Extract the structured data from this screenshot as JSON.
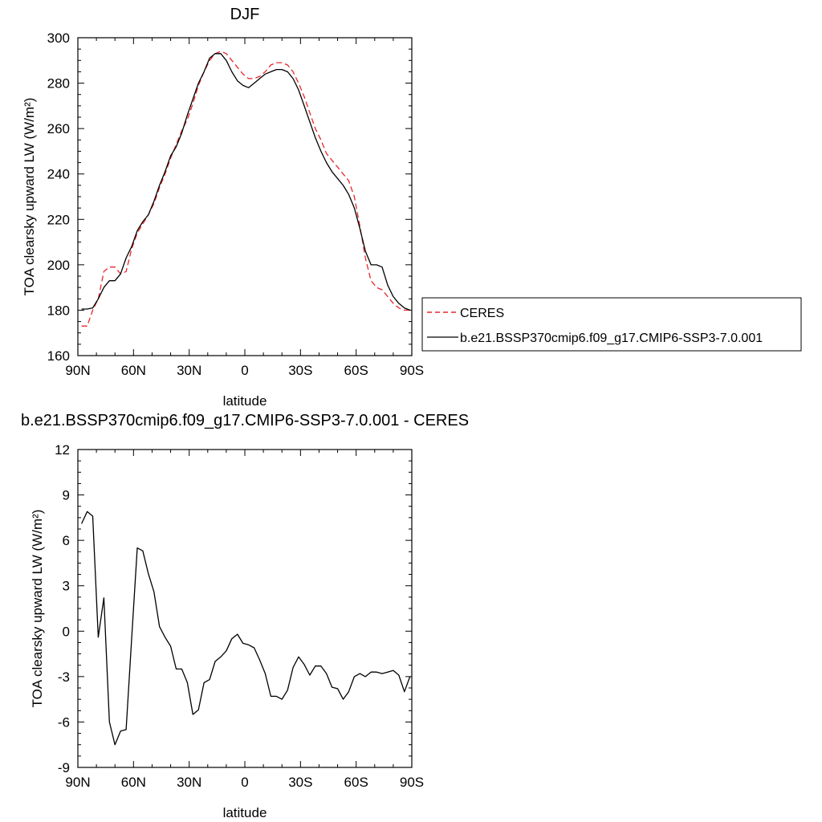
{
  "chart_data": [
    {
      "type": "line",
      "title": "DJF",
      "xlabel": "latitude",
      "ylabel": "TOA clearsky upward LW (W/m²)",
      "xlim": [
        -90,
        90
      ],
      "ylim": [
        160,
        300
      ],
      "x_ticks": [
        -90,
        -60,
        -30,
        0,
        30,
        60,
        90
      ],
      "x_tick_labels": [
        "90N",
        "60N",
        "30N",
        "0",
        "30S",
        "60S",
        "90S"
      ],
      "y_ticks": [
        160,
        180,
        200,
        220,
        240,
        260,
        280,
        300
      ],
      "y_tick_labels": [
        "160",
        "180",
        "200",
        "220",
        "240",
        "260",
        "280",
        "300"
      ],
      "legend": {
        "position": "right"
      },
      "series": [
        {
          "name": "CERES",
          "color": "#e8262a",
          "dash": true,
          "x": [
            -88,
            -85,
            -82,
            -79,
            -76,
            -73,
            -70,
            -67,
            -64,
            -61,
            -58,
            -55,
            -52,
            -49,
            -46,
            -43,
            -40,
            -37,
            -34,
            -31,
            -28,
            -25,
            -22,
            -19,
            -16,
            -13,
            -10,
            -7,
            -4,
            -1,
            2,
            5,
            8,
            11,
            14,
            17,
            20,
            23,
            26,
            29,
            32,
            35,
            38,
            41,
            44,
            47,
            50,
            53,
            56,
            59,
            62,
            65,
            68,
            71,
            74,
            77,
            80,
            83,
            86,
            89
          ],
          "y": [
            173,
            173,
            180,
            185,
            197,
            199,
            199,
            196,
            197,
            207,
            214,
            218,
            222,
            227,
            234,
            240,
            247,
            253,
            259,
            264,
            271,
            279,
            285,
            290,
            293,
            294,
            293,
            290,
            287,
            284,
            282,
            282,
            283,
            285,
            288,
            289,
            289,
            288,
            285,
            280,
            274,
            267,
            260,
            255,
            249,
            246,
            243,
            240,
            237,
            230,
            217,
            203,
            193,
            190,
            189,
            186,
            183,
            181,
            180,
            180
          ]
        },
        {
          "name": "b.e21.BSSP370cmip6.f09_g17.CMIP6-SSP3-7.0.001",
          "color": "#000000",
          "dash": false,
          "x": [
            -88,
            -85,
            -82,
            -79,
            -76,
            -73,
            -70,
            -67,
            -64,
            -61,
            -58,
            -55,
            -52,
            -49,
            -46,
            -43,
            -40,
            -37,
            -34,
            -31,
            -28,
            -25,
            -22,
            -19,
            -16,
            -13,
            -10,
            -7,
            -4,
            -1,
            2,
            5,
            8,
            11,
            14,
            17,
            20,
            23,
            26,
            29,
            32,
            35,
            38,
            41,
            44,
            47,
            50,
            53,
            56,
            59,
            62,
            65,
            68,
            71,
            74,
            77,
            80,
            83,
            86,
            89
          ],
          "y": [
            180.5,
            180.5,
            181,
            185,
            190,
            193,
            193,
            196,
            203,
            208,
            215,
            219,
            222,
            228,
            235,
            241,
            248,
            252,
            258,
            266,
            273,
            280,
            285,
            291,
            293,
            293,
            290,
            285,
            281,
            279,
            278,
            280,
            282,
            284,
            285,
            286,
            286,
            285,
            282,
            277,
            270,
            263,
            256,
            250,
            245,
            241,
            238,
            235,
            231,
            225,
            216,
            206,
            200,
            200,
            199,
            191,
            186,
            183,
            181,
            180
          ]
        }
      ]
    },
    {
      "type": "line",
      "title": "b.e21.BSSP370cmip6.f09_g17.CMIP6-SSP3-7.0.001 - CERES",
      "xlabel": "latitude",
      "ylabel": "TOA clearsky upward LW (W/m²)",
      "xlim": [
        -90,
        90
      ],
      "ylim": [
        -9,
        12
      ],
      "x_ticks": [
        -90,
        -60,
        -30,
        0,
        30,
        60,
        90
      ],
      "x_tick_labels": [
        "90N",
        "60N",
        "30N",
        "0",
        "30S",
        "60S",
        "90S"
      ],
      "y_ticks": [
        -9,
        -6,
        -3,
        0,
        3,
        6,
        9,
        12
      ],
      "y_tick_labels": [
        "-9",
        "-6",
        "-3",
        "0",
        "3",
        "6",
        "9",
        "12"
      ],
      "series": [
        {
          "color": "#000000",
          "dash": false,
          "x": [
            -88,
            -85,
            -82,
            -79,
            -76,
            -73,
            -70,
            -67,
            -64,
            -61,
            -58,
            -55,
            -52,
            -49,
            -46,
            -43,
            -40,
            -37,
            -34,
            -31,
            -28,
            -25,
            -22,
            -19,
            -16,
            -13,
            -10,
            -7,
            -4,
            -1,
            2,
            5,
            8,
            11,
            14,
            17,
            20,
            23,
            26,
            29,
            32,
            35,
            38,
            41,
            44,
            47,
            50,
            53,
            56,
            59,
            62,
            65,
            68,
            71,
            74,
            77,
            80,
            83,
            86,
            89
          ],
          "y": [
            7.1,
            7.9,
            7.6,
            -0.4,
            2.2,
            -6.0,
            -7.5,
            -6.6,
            -6.5,
            -0.5,
            5.5,
            5.3,
            3.8,
            2.6,
            0.3,
            -0.4,
            -1.0,
            -2.5,
            -2.5,
            -3.4,
            -5.5,
            -5.2,
            -3.4,
            -3.2,
            -2.0,
            -1.7,
            -1.3,
            -0.5,
            -0.2,
            -0.8,
            -0.9,
            -1.1,
            -1.9,
            -2.8,
            -4.3,
            -4.3,
            -4.5,
            -3.9,
            -2.4,
            -1.7,
            -2.2,
            -2.9,
            -2.3,
            -2.3,
            -2.8,
            -3.7,
            -3.8,
            -4.5,
            -4.0,
            -3.0,
            -2.8,
            -3.0,
            -2.7,
            -2.7,
            -2.8,
            -2.7,
            -2.6,
            -2.9,
            -4.0,
            -3.0
          ]
        }
      ]
    }
  ]
}
